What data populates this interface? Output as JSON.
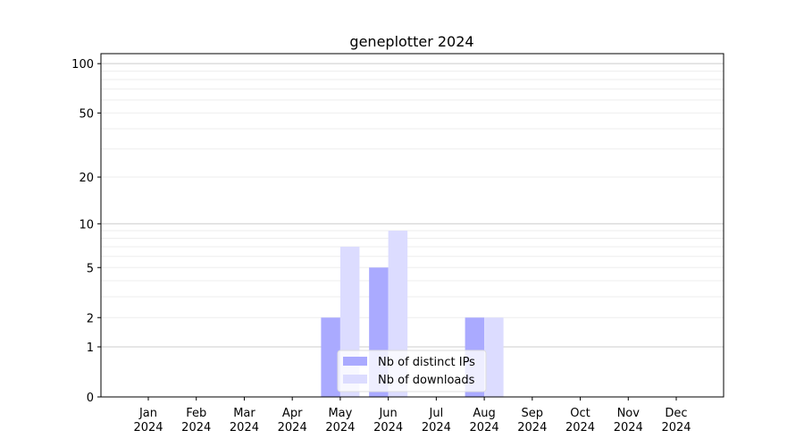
{
  "chart_data": {
    "type": "bar",
    "title": "geneplotter 2024",
    "xlabel": "",
    "ylabel": "",
    "yscale": "log(1+y)",
    "ylim": [
      0,
      115
    ],
    "yticks": [
      0,
      1,
      2,
      5,
      10,
      20,
      50,
      100
    ],
    "grid": true,
    "legend_placement": "lower-center",
    "categories": [
      "Jan\n2024",
      "Feb\n2024",
      "Mar\n2024",
      "Apr\n2024",
      "May\n2024",
      "Jun\n2024",
      "Jul\n2024",
      "Aug\n2024",
      "Sep\n2024",
      "Oct\n2024",
      "Nov\n2024",
      "Dec\n2024"
    ],
    "series": [
      {
        "name": "Nb of distinct IPs",
        "color": "#aaaaff",
        "values": [
          0,
          0,
          0,
          0,
          2,
          5,
          0,
          2,
          0,
          0,
          0,
          0
        ]
      },
      {
        "name": "Nb of downloads",
        "color": "#dcdcff",
        "values": [
          0,
          0,
          0,
          0,
          7,
          9,
          0,
          2,
          0,
          0,
          0,
          0
        ]
      }
    ]
  }
}
